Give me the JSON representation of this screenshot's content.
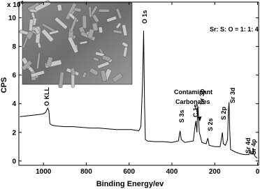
{
  "chart_data": {
    "type": "line",
    "x_label": "Binding Energy/ev",
    "y_label": "CPS",
    "y_scale_label": "x 10",
    "y_scale_exponent": 4,
    "annotations": [
      "O KLL",
      "O 1s",
      "Sr: S: O = 1: 1: 4",
      "Contaminant",
      "Carbonates",
      "S 3s",
      "C 1s",
      "Sr 3p",
      "S 2s",
      "S 2p",
      "Sr 3d",
      "Sr 4d",
      "Sr 4p"
    ],
    "xlim": [
      1115,
      -5
    ],
    "xticks": [
      1000,
      800,
      600,
      400,
      200,
      0
    ],
    "ylim": [
      -0.3,
      11.1
    ],
    "yticks": [
      0,
      2,
      4,
      6,
      8,
      10
    ],
    "series": [
      {
        "color": "#000000",
        "x": [
          1110,
          1080,
          1050,
          1020,
          1000,
          990,
          980,
          975,
          970,
          960,
          940,
          900,
          860,
          820,
          780,
          740,
          700,
          660,
          620,
          590,
          570,
          555,
          545,
          537,
          532,
          528,
          524,
          515,
          480,
          440,
          400,
          370,
          362,
          356,
          340,
          300,
          292,
          288,
          283,
          280,
          278,
          272,
          268,
          260,
          240,
          232,
          226,
          200,
          175,
          168,
          164,
          160,
          150,
          140,
          136,
          133,
          130,
          126,
          100,
          80,
          60,
          40,
          35,
          32,
          22,
          20,
          18,
          10,
          2
        ],
        "values": [
          3.1,
          3.15,
          3.2,
          3.25,
          3.3,
          3.4,
          3.7,
          3.5,
          2.6,
          2.5,
          2.45,
          2.4,
          2.4,
          2.35,
          2.3,
          2.3,
          2.25,
          2.2,
          2.2,
          2.2,
          2.15,
          2.1,
          2.4,
          5.5,
          9.1,
          4.0,
          1.5,
          1.4,
          1.35,
          1.35,
          1.3,
          1.4,
          2.1,
          1.5,
          1.3,
          1.4,
          2.4,
          2.8,
          2.0,
          3.5,
          3.8,
          2.0,
          1.8,
          1.3,
          1.2,
          1.6,
          1.1,
          1.0,
          1.0,
          1.6,
          2.0,
          1.2,
          1.1,
          1.5,
          3.5,
          4.1,
          2.2,
          0.8,
          0.6,
          0.5,
          0.45,
          0.45,
          0.8,
          0.5,
          0.5,
          0.9,
          0.5,
          0.3,
          0.2
        ]
      }
    ]
  }
}
